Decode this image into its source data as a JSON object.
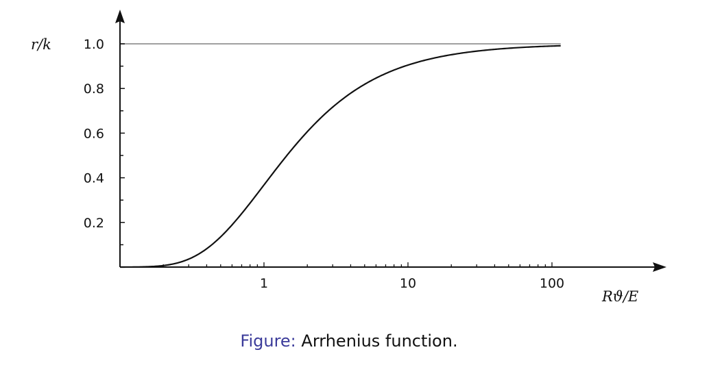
{
  "chart_data": {
    "type": "line",
    "xscale": "log",
    "xlabel": "Rϑ/E",
    "ylabel": "r/k",
    "xlim": [
      0.1,
      115
    ],
    "ylim": [
      0,
      1.0
    ],
    "xticks": [
      {
        "value": 1,
        "label": "1"
      },
      {
        "value": 10,
        "label": "10"
      },
      {
        "value": 100,
        "label": "100"
      }
    ],
    "yticks": [
      {
        "value": 0.2,
        "label": "0.2"
      },
      {
        "value": 0.4,
        "label": "0.4"
      },
      {
        "value": 0.6,
        "label": "0.6"
      },
      {
        "value": 0.8,
        "label": "0.8"
      },
      {
        "value": 1.0,
        "label": "1.0"
      }
    ],
    "grid": false,
    "series": [
      {
        "function": "exp(-1/x)",
        "x": [
          0.1,
          0.2,
          0.3,
          0.5,
          0.7,
          1,
          1.5,
          2,
          3,
          5,
          7,
          10,
          20,
          30,
          50,
          70,
          100,
          115
        ],
        "values": [
          0.0,
          0.007,
          0.036,
          0.135,
          0.24,
          0.368,
          0.513,
          0.607,
          0.717,
          0.819,
          0.867,
          0.905,
          0.951,
          0.967,
          0.98,
          0.986,
          0.99,
          0.991
        ],
        "color": "#111111"
      },
      {
        "function": "asymptote",
        "x": [
          0.1,
          115
        ],
        "values": [
          1.0,
          1.0
        ],
        "color": "#a0a0a0"
      }
    ]
  },
  "caption": {
    "prefix": "Figure:",
    "text": "Arrhenius function."
  }
}
